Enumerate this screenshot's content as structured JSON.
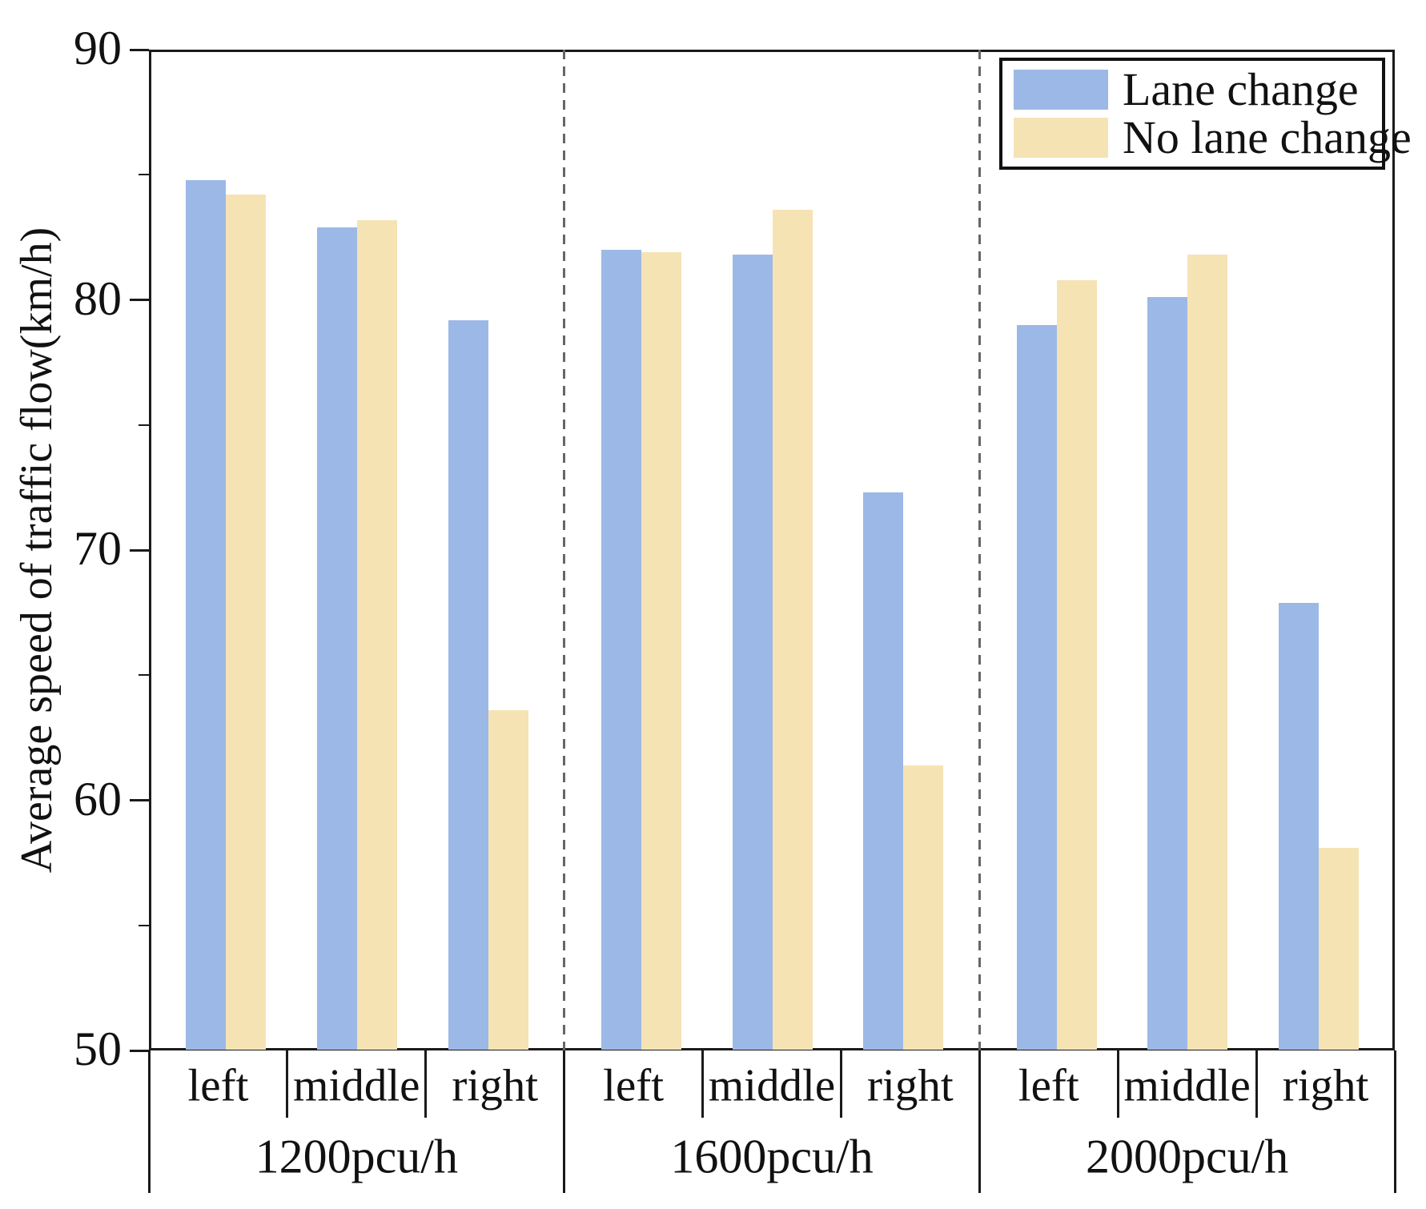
{
  "figure": {
    "background": "#ffffff",
    "axis_color": "#1a1a1a",
    "text_color": "#111111"
  },
  "chart_data": {
    "type": "bar",
    "title": "",
    "xlabel": "",
    "ylabel": "Average speed of traffic flow(km/h)",
    "ylim": [
      50,
      90
    ],
    "yticks_major": [
      50,
      60,
      70,
      80,
      90
    ],
    "yticks_minor": [
      55,
      65,
      75,
      85
    ],
    "grid": false,
    "legend_position": "top-right",
    "lane_categories": [
      "left",
      "middle",
      "right"
    ],
    "groups": [
      {
        "label": "1200pcu/h"
      },
      {
        "label": "1600pcu/h"
      },
      {
        "label": "2000pcu/h"
      }
    ],
    "series": [
      {
        "name": "Lane change",
        "color": "#9cb8e7",
        "values": [
          [
            84.8,
            82.9,
            79.2
          ],
          [
            82.0,
            81.8,
            72.3
          ],
          [
            79.0,
            80.1,
            67.9
          ]
        ]
      },
      {
        "name": "No lane change",
        "color": "#f6e3b4",
        "values": [
          [
            84.2,
            83.2,
            63.6
          ],
          [
            81.9,
            83.6,
            61.4
          ],
          [
            80.8,
            81.8,
            58.1
          ]
        ]
      }
    ],
    "separator_line_color": "#666666",
    "separator_line_style": "dashed"
  }
}
